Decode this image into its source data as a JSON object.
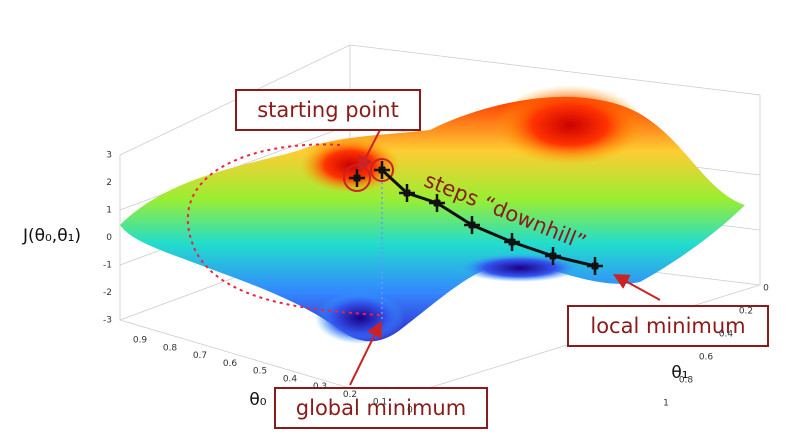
{
  "annotations": {
    "starting_point": "starting point",
    "steps": "steps “downhill”",
    "local_minimum": "local minimum",
    "global_minimum": "global minimum"
  },
  "axes": {
    "z_label": "J(θ₀,θ₁)",
    "theta0_label": "θ₀",
    "theta1_label": "θ₁",
    "z_ticks": [
      "3",
      "2",
      "1",
      "0",
      "-1",
      "-2",
      "-3"
    ],
    "theta0_ticks": [
      "0.9",
      "0.8",
      "0.7",
      "0.6",
      "0.5",
      "0.4",
      "0.3",
      "0.2",
      "0.1",
      "0"
    ],
    "theta1_ticks": [
      "0",
      "0.2",
      "0.4",
      "0.6",
      "0.8",
      "1"
    ]
  }
}
